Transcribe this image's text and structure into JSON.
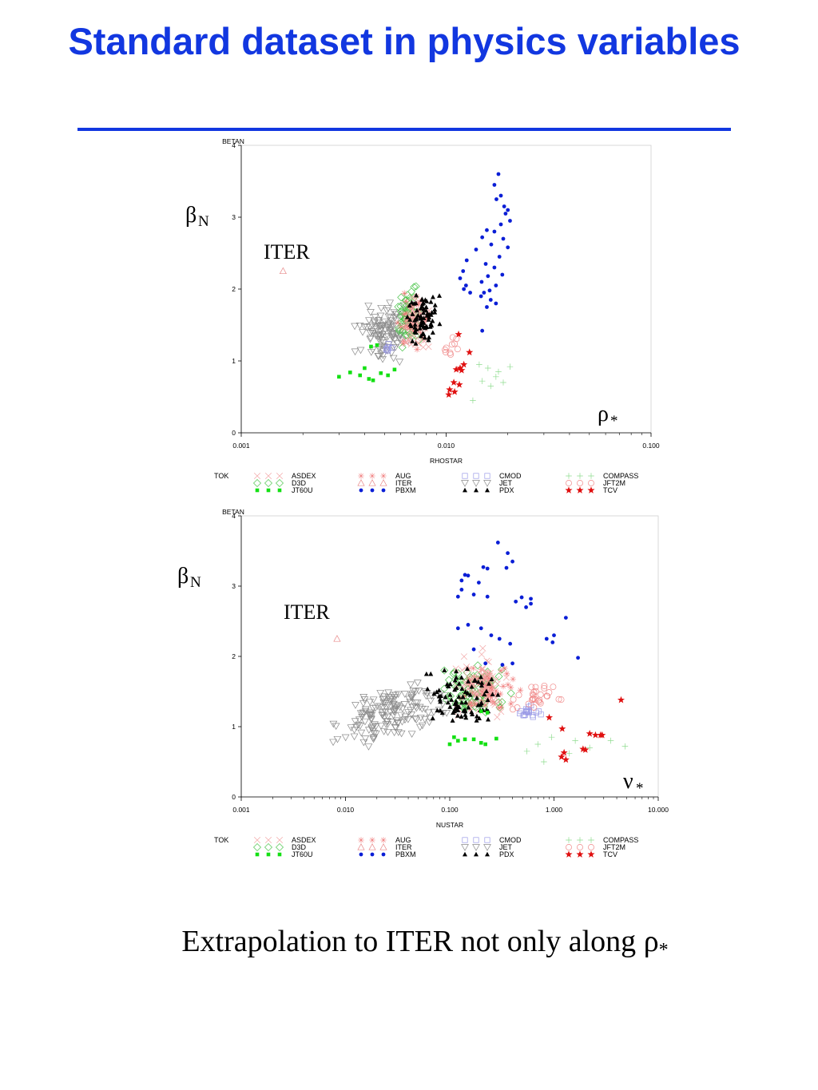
{
  "title": "Standard dataset in physics variables",
  "caption": {
    "text": "Extrapolation to ITER not only along ",
    "symbol": "ρ",
    "subscript": "*"
  },
  "colors": {
    "title": "#1237e0",
    "ASDEX": "#f2a6a6",
    "AUG": "#f07a7a",
    "CMOD": "#9a9ae6",
    "COMPASS": "#8fdc8f",
    "D3D": "#49c449",
    "ITER": "#e88a8a",
    "JET": "#8a8a8a",
    "JFT2M": "#f08a8a",
    "JT60U": "#14e014",
    "PBXM": "#0a1ed6",
    "PDX": "#000000",
    "TCV": "#e01010"
  },
  "chart_data": [
    {
      "type": "scatter",
      "x_scale": "log",
      "xlabel": "RHOSTAR",
      "ylabel": "BETAN",
      "xlim": [
        0.001,
        0.1
      ],
      "ylim": [
        0,
        4
      ],
      "xticks": [
        "0.001",
        "0.010",
        "0.100"
      ],
      "xtick_values": [
        0.001,
        0.01,
        0.1
      ],
      "yticks": [
        "0",
        "1",
        "2",
        "3",
        "4"
      ],
      "y_symbol": {
        "main": "β",
        "sub": "N"
      },
      "x_symbol": {
        "main": "ρ",
        "sub": "*"
      },
      "annotation": "ITER",
      "legend_title": "TOK",
      "legend": [
        [
          "ASDEX",
          "x"
        ],
        [
          "AUG",
          "star"
        ],
        [
          "CMOD",
          "square"
        ],
        [
          "COMPASS",
          "plus"
        ],
        [
          "D3D",
          "diamond"
        ],
        [
          "ITER",
          "triangle"
        ],
        [
          "JET",
          "tri-down"
        ],
        [
          "JFT2M",
          "circle"
        ],
        [
          "JT60U",
          "square-fill"
        ],
        [
          "PBXM",
          "dot"
        ],
        [
          "PDX",
          "triangle-fill"
        ],
        [
          "TCV",
          "star-fill"
        ]
      ],
      "series": [
        {
          "name": "ITER",
          "marker": "triangle",
          "points": [
            [
              0.0016,
              2.25
            ]
          ]
        },
        {
          "name": "PBXM",
          "marker": "dot",
          "points": [
            [
              0.018,
              3.6
            ],
            [
              0.0172,
              3.45
            ],
            [
              0.0185,
              3.3
            ],
            [
              0.0176,
              3.25
            ],
            [
              0.0192,
              3.15
            ],
            [
              0.02,
              3.1
            ],
            [
              0.0195,
              3.05
            ],
            [
              0.0205,
              2.95
            ],
            [
              0.0185,
              2.9
            ],
            [
              0.0158,
              2.82
            ],
            [
              0.0172,
              2.8
            ],
            [
              0.015,
              2.72
            ],
            [
              0.019,
              2.7
            ],
            [
              0.0166,
              2.62
            ],
            [
              0.02,
              2.58
            ],
            [
              0.014,
              2.55
            ],
            [
              0.0182,
              2.45
            ],
            [
              0.0156,
              2.35
            ],
            [
              0.0172,
              2.3
            ],
            [
              0.0188,
              2.2
            ],
            [
              0.016,
              2.18
            ],
            [
              0.0149,
              2.1
            ],
            [
              0.0175,
              2.05
            ],
            [
              0.0163,
              1.98
            ],
            [
              0.0153,
              1.95
            ],
            [
              0.0148,
              1.9
            ],
            [
              0.0165,
              1.85
            ],
            [
              0.0175,
              1.8
            ],
            [
              0.0158,
              1.75
            ],
            [
              0.0126,
              2.4
            ],
            [
              0.0121,
              2.25
            ],
            [
              0.0117,
              2.15
            ],
            [
              0.0125,
              2.05
            ],
            [
              0.0131,
              1.95
            ],
            [
              0.0122,
              2.0
            ],
            [
              0.015,
              1.42
            ]
          ]
        },
        {
          "name": "TCV",
          "marker": "star-fill",
          "points": [
            [
              0.0115,
              1.37
            ],
            [
              0.013,
              1.12
            ],
            [
              0.0122,
              0.95
            ],
            [
              0.0117,
              0.9
            ],
            [
              0.0112,
              0.88
            ],
            [
              0.0119,
              0.87
            ],
            [
              0.0109,
              0.7
            ],
            [
              0.0116,
              0.67
            ],
            [
              0.0104,
              0.6
            ],
            [
              0.0103,
              0.53
            ],
            [
              0.011,
              0.57
            ]
          ]
        },
        {
          "name": "JT60U",
          "marker": "square-fill",
          "points": [
            [
              0.003,
              0.78
            ],
            [
              0.0034,
              0.84
            ],
            [
              0.0038,
              0.8
            ],
            [
              0.0042,
              0.75
            ],
            [
              0.0044,
              0.73
            ],
            [
              0.0048,
              0.83
            ],
            [
              0.0052,
              0.8
            ],
            [
              0.0043,
              1.2
            ],
            [
              0.0046,
              1.22
            ],
            [
              0.004,
              0.9
            ],
            [
              0.0056,
              0.88
            ]
          ]
        },
        {
          "name": "COMPASS",
          "marker": "plus",
          "points": [
            [
              0.0145,
              0.95
            ],
            [
              0.016,
              0.9
            ],
            [
              0.018,
              0.85
            ],
            [
              0.0205,
              0.92
            ],
            [
              0.0165,
              0.65
            ],
            [
              0.019,
              0.7
            ],
            [
              0.0135,
              0.45
            ],
            [
              0.015,
              0.72
            ],
            [
              0.0175,
              0.78
            ]
          ]
        }
      ]
    },
    {
      "type": "scatter",
      "x_scale": "log",
      "xlabel": "NUSTAR",
      "ylabel": "BETAN",
      "xlim": [
        0.001,
        10
      ],
      "ylim": [
        0,
        4
      ],
      "xticks": [
        "0.001",
        "0.010",
        "0.100",
        "1.000",
        "10.000"
      ],
      "xtick_values": [
        0.001,
        0.01,
        0.1,
        1,
        10
      ],
      "yticks": [
        "0",
        "1",
        "2",
        "3",
        "4"
      ],
      "y_symbol": {
        "main": "β",
        "sub": "N"
      },
      "x_symbol": {
        "main": "ν",
        "sub": "*"
      },
      "annotation": "ITER",
      "legend_title": "TOK",
      "legend": [
        [
          "ASDEX",
          "x"
        ],
        [
          "AUG",
          "star"
        ],
        [
          "CMOD",
          "square"
        ],
        [
          "COMPASS",
          "plus"
        ],
        [
          "D3D",
          "diamond"
        ],
        [
          "ITER",
          "triangle"
        ],
        [
          "JET",
          "tri-down"
        ],
        [
          "JFT2M",
          "circle"
        ],
        [
          "JT60U",
          "square-fill"
        ],
        [
          "PBXM",
          "dot"
        ],
        [
          "PDX",
          "triangle-fill"
        ],
        [
          "TCV",
          "star-fill"
        ]
      ],
      "series": [
        {
          "name": "ITER",
          "marker": "triangle",
          "points": [
            [
              0.0083,
              2.25
            ]
          ]
        },
        {
          "name": "PBXM",
          "marker": "dot",
          "points": [
            [
              0.29,
              3.62
            ],
            [
              0.36,
              3.47
            ],
            [
              0.4,
              3.35
            ],
            [
              0.21,
              3.27
            ],
            [
              0.23,
              3.25
            ],
            [
              0.35,
              3.26
            ],
            [
              0.14,
              3.16
            ],
            [
              0.15,
              3.15
            ],
            [
              0.13,
              3.08
            ],
            [
              0.19,
              3.05
            ],
            [
              0.13,
              2.95
            ],
            [
              0.12,
              2.85
            ],
            [
              0.17,
              2.88
            ],
            [
              0.23,
              2.85
            ],
            [
              0.49,
              2.84
            ],
            [
              0.6,
              2.82
            ],
            [
              0.54,
              2.7
            ],
            [
              0.43,
              2.78
            ],
            [
              0.6,
              2.75
            ],
            [
              1.3,
              2.55
            ],
            [
              0.15,
              2.45
            ],
            [
              0.12,
              2.4
            ],
            [
              0.2,
              2.4
            ],
            [
              0.25,
              2.3
            ],
            [
              0.3,
              2.25
            ],
            [
              0.85,
              2.25
            ],
            [
              0.97,
              2.2
            ],
            [
              1.0,
              2.3
            ],
            [
              0.38,
              2.18
            ],
            [
              1.7,
              1.98
            ],
            [
              0.22,
              1.9
            ],
            [
              0.32,
              1.88
            ],
            [
              0.4,
              1.9
            ],
            [
              0.17,
              2.1
            ]
          ]
        },
        {
          "name": "TCV",
          "marker": "star-fill",
          "points": [
            [
              4.4,
              1.38
            ],
            [
              0.9,
              1.13
            ],
            [
              1.2,
              0.97
            ],
            [
              2.2,
              0.9
            ],
            [
              2.5,
              0.88
            ],
            [
              2.8,
              0.88
            ],
            [
              2.9,
              0.88
            ],
            [
              1.9,
              0.68
            ],
            [
              2.0,
              0.67
            ],
            [
              1.25,
              0.63
            ],
            [
              1.18,
              0.57
            ],
            [
              1.3,
              0.53
            ]
          ]
        },
        {
          "name": "JT60U",
          "marker": "square-fill",
          "points": [
            [
              0.1,
              0.75
            ],
            [
              0.11,
              0.85
            ],
            [
              0.14,
              0.82
            ],
            [
              0.17,
              0.82
            ],
            [
              0.2,
              0.77
            ],
            [
              0.22,
              0.75
            ],
            [
              0.28,
              0.83
            ],
            [
              0.2,
              1.22
            ],
            [
              0.23,
              1.2
            ],
            [
              0.12,
              0.8
            ]
          ]
        },
        {
          "name": "COMPASS",
          "marker": "plus",
          "points": [
            [
              0.7,
              0.75
            ],
            [
              0.95,
              0.85
            ],
            [
              1.6,
              0.8
            ],
            [
              3.5,
              0.8
            ],
            [
              4.8,
              0.72
            ],
            [
              0.55,
              0.65
            ],
            [
              0.8,
              0.5
            ],
            [
              1.4,
              0.62
            ],
            [
              2.2,
              0.7
            ]
          ]
        }
      ]
    }
  ]
}
